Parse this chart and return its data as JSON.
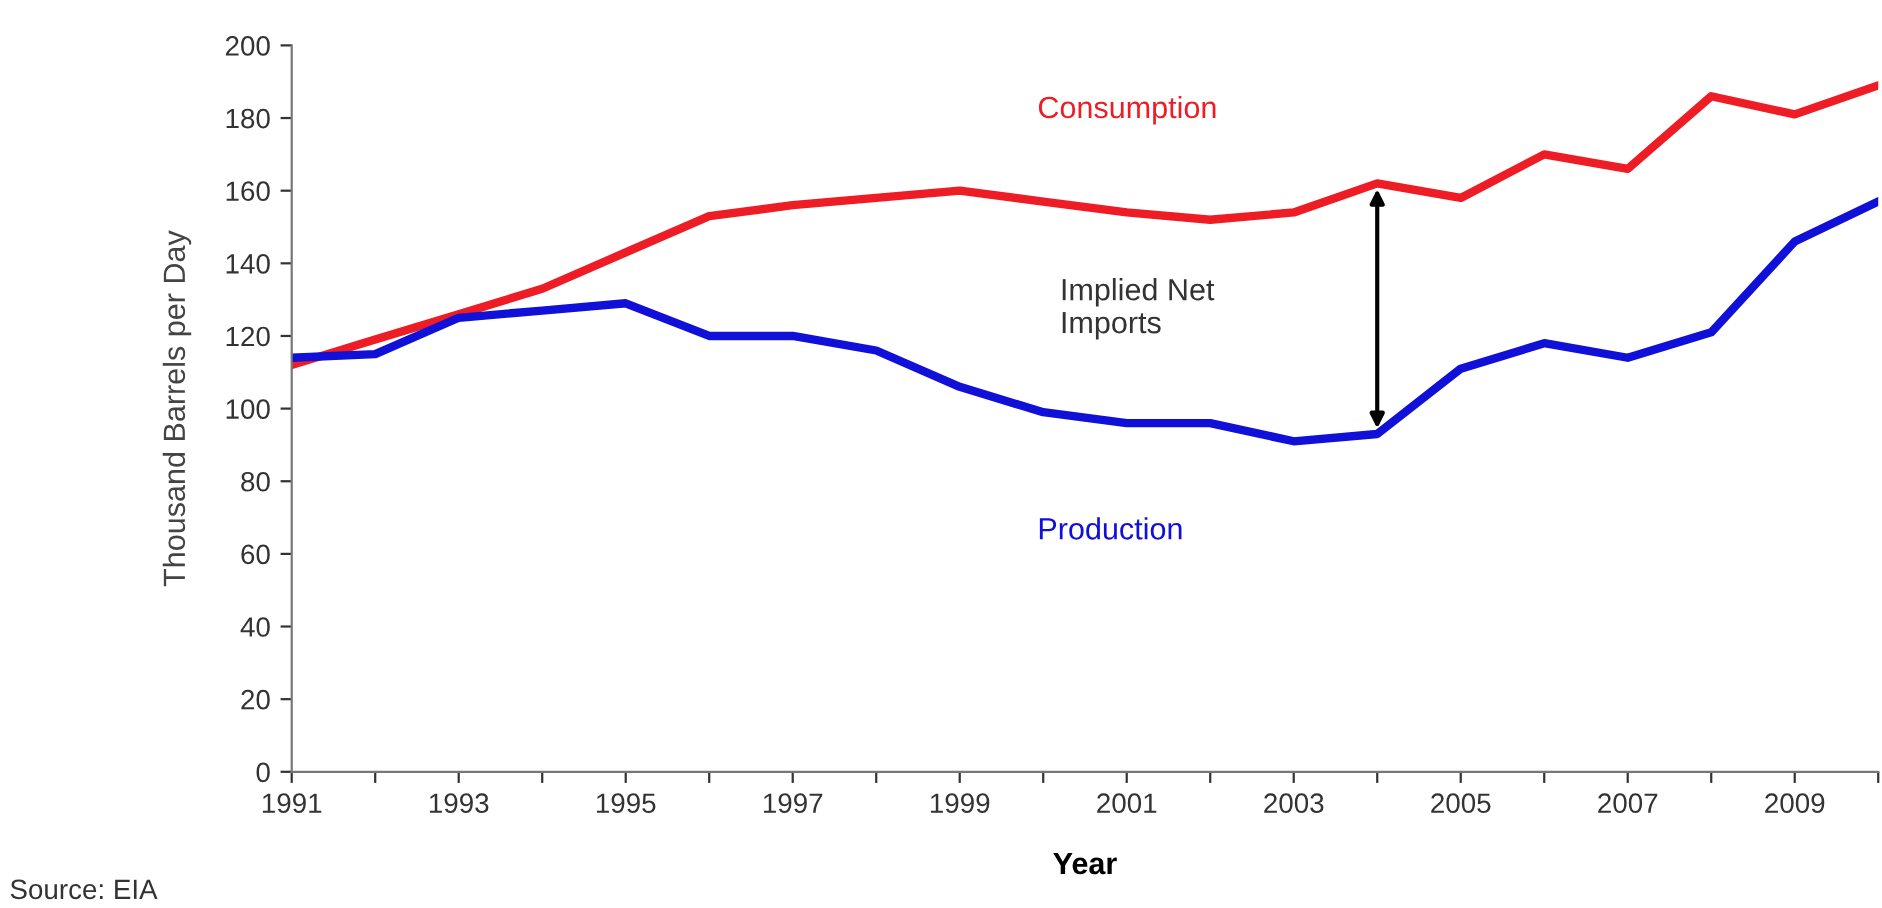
{
  "chart_data": {
    "type": "line",
    "xlabel": "Year",
    "ylabel": "Thousand Barrels per Day",
    "x": [
      1991,
      1992,
      1993,
      1994,
      1995,
      1996,
      1997,
      1998,
      1999,
      2000,
      2001,
      2002,
      2003,
      2004,
      2005,
      2006,
      2007,
      2008,
      2009,
      2010
    ],
    "series": [
      {
        "name": "Consumption",
        "color": "#ee1c25",
        "values": [
          112,
          119,
          126,
          133,
          143,
          153,
          156,
          158,
          160,
          157,
          154,
          152,
          154,
          162,
          158,
          170,
          166,
          186,
          181,
          189
        ]
      },
      {
        "name": "Production",
        "color": "#1010d8",
        "values": [
          114,
          115,
          125,
          127,
          129,
          120,
          120,
          116,
          106,
          99,
          96,
          96,
          91,
          93,
          111,
          118,
          114,
          121,
          146,
          157
        ]
      }
    ],
    "xlim": [
      1991,
      2010
    ],
    "xticks": [
      1991,
      {
        "value": 1992,
        "label": null
      },
      1993,
      {
        "value": 1994,
        "label": null
      },
      1995,
      {
        "value": 1996,
        "label": null
      },
      1997,
      {
        "value": 1998,
        "label": null
      },
      1999,
      {
        "value": 2000,
        "label": null
      },
      2001,
      {
        "value": 2002,
        "label": null
      },
      2003,
      {
        "value": 2004,
        "label": null
      },
      2005,
      {
        "value": 2006,
        "label": null
      },
      2007,
      {
        "value": 2008,
        "label": null
      },
      2009,
      {
        "value": 2010,
        "label": null
      }
    ],
    "ylim": [
      0,
      200
    ],
    "yticks": [
      0,
      20,
      40,
      60,
      80,
      100,
      120,
      140,
      160,
      180,
      200
    ],
    "grid": false,
    "legend": false,
    "marker": "none",
    "line_style": "solid",
    "annotations": [
      "Implied Net\nImports",
      "Source: EIA"
    ]
  }
}
